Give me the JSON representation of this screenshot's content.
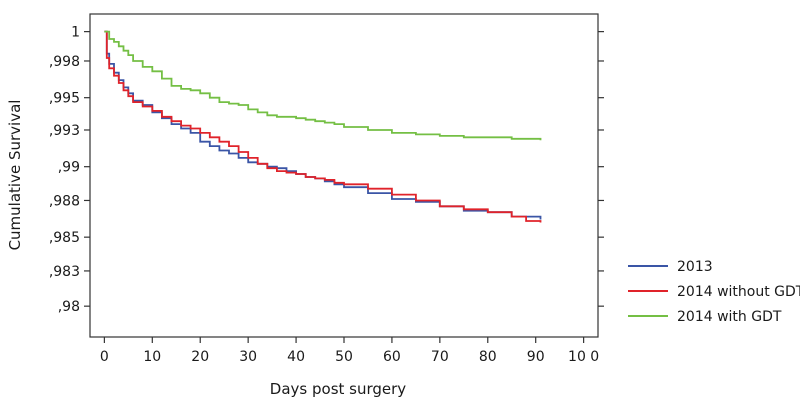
{
  "chart_data": {
    "type": "line",
    "xlabel": "Days post surgery",
    "ylabel": "Cumulative Survival",
    "xlim": [
      -3,
      103
    ],
    "ylim": [
      0.9792,
      1.0012
    ],
    "x_ticks": [
      0,
      10,
      20,
      30,
      40,
      50,
      60,
      70,
      80,
      90,
      100
    ],
    "x_tick_labels": [
      "0",
      "10",
      "20",
      "30",
      "40",
      "50",
      "60",
      "70",
      "80",
      "90",
      "10 0"
    ],
    "y_ticks": [
      1.0,
      0.998,
      0.9955,
      0.9933,
      0.9908,
      0.9885,
      0.986,
      0.9837,
      0.9813
    ],
    "y_tick_labels": [
      "1",
      ",998",
      ",995",
      ",993",
      ",99",
      ",988",
      ",985",
      ",983",
      ",98"
    ],
    "grid": false,
    "legend_position": "right",
    "series": [
      {
        "name": "2013",
        "color": "#3a55a6",
        "x": [
          0,
          0.5,
          1,
          2,
          3,
          4,
          5,
          6,
          8,
          10,
          12,
          14,
          16,
          18,
          20,
          22,
          24,
          26,
          28,
          30,
          32,
          34,
          36,
          38,
          40,
          42,
          44,
          46,
          48,
          50,
          55,
          60,
          65,
          70,
          75,
          80,
          85,
          91
        ],
        "y": [
          1.0,
          0.9985,
          0.9978,
          0.9972,
          0.9967,
          0.9962,
          0.9958,
          0.9953,
          0.995,
          0.9945,
          0.9941,
          0.9937,
          0.9934,
          0.9931,
          0.9925,
          0.9922,
          0.9919,
          0.9917,
          0.9914,
          0.9911,
          0.991,
          0.9908,
          0.9907,
          0.9905,
          0.9903,
          0.9901,
          0.99,
          0.9898,
          0.9896,
          0.9894,
          0.989,
          0.9886,
          0.9884,
          0.9881,
          0.9878,
          0.9877,
          0.9874,
          0.9872
        ]
      },
      {
        "name": "2014 without GDT",
        "color": "#e0232a",
        "x": [
          0,
          0.5,
          1,
          2,
          3,
          4,
          5,
          6,
          8,
          10,
          12,
          14,
          16,
          18,
          20,
          22,
          24,
          26,
          28,
          30,
          32,
          34,
          36,
          38,
          40,
          42,
          44,
          46,
          48,
          50,
          55,
          60,
          65,
          70,
          75,
          80,
          85,
          88,
          91
        ],
        "y": [
          1.0,
          0.9982,
          0.9975,
          0.997,
          0.9965,
          0.996,
          0.9956,
          0.9952,
          0.9949,
          0.9946,
          0.9942,
          0.9939,
          0.9936,
          0.9934,
          0.9931,
          0.9928,
          0.9925,
          0.9922,
          0.9918,
          0.9914,
          0.991,
          0.9907,
          0.9905,
          0.9904,
          0.9903,
          0.9901,
          0.99,
          0.9899,
          0.9897,
          0.9896,
          0.9893,
          0.9889,
          0.9885,
          0.9881,
          0.9879,
          0.9877,
          0.9874,
          0.9871,
          0.987
        ]
      },
      {
        "name": "2014 with GDT",
        "color": "#74bf44",
        "x": [
          0,
          1,
          2,
          3,
          4,
          5,
          6,
          8,
          10,
          12,
          14,
          16,
          18,
          20,
          22,
          24,
          26,
          28,
          30,
          32,
          34,
          36,
          38,
          40,
          42,
          44,
          46,
          48,
          50,
          55,
          60,
          65,
          70,
          75,
          80,
          85,
          91
        ],
        "y": [
          1.0,
          0.9995,
          0.9993,
          0.999,
          0.9987,
          0.9984,
          0.998,
          0.9976,
          0.9973,
          0.9968,
          0.9963,
          0.9961,
          0.996,
          0.9958,
          0.9955,
          0.9952,
          0.9951,
          0.995,
          0.9947,
          0.9945,
          0.9943,
          0.9942,
          0.9942,
          0.9941,
          0.994,
          0.9939,
          0.9938,
          0.9937,
          0.9935,
          0.9933,
          0.9931,
          0.993,
          0.9929,
          0.9928,
          0.9928,
          0.9927,
          0.9926
        ]
      }
    ]
  }
}
